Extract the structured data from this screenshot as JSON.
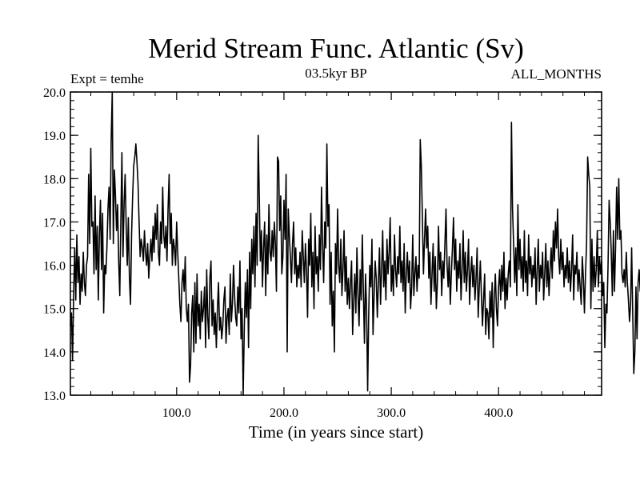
{
  "chart_data": {
    "type": "line",
    "title": "Merid Stream Func. Atlantic (Sv)",
    "subtitle": "03.5kyr BP",
    "left_label": "Expt = temhe",
    "right_label": "ALL_MONTHS",
    "xlabel": "Time (in years since start)",
    "ylabel": "",
    "xlim": [
      1,
      496
    ],
    "ylim": [
      13.0,
      20.0
    ],
    "xticks": [
      100,
      200,
      300,
      400
    ],
    "xtick_labels": [
      "100.0",
      "200.0",
      "300.0",
      "400.0"
    ],
    "yticks": [
      13,
      14,
      15,
      16,
      17,
      18,
      19,
      20
    ],
    "ytick_labels": [
      "13.0",
      "14.0",
      "15.0",
      "16.0",
      "17.0",
      "18.0",
      "19.0",
      "20.0"
    ],
    "grid": false,
    "series": [
      {
        "name": "Merid Stream Func. Atlantic",
        "color": "#000000",
        "x_start": 1,
        "x_step": 1,
        "values": [
          14.6,
          14.9,
          13.8,
          15.3,
          16.4,
          15.2,
          16.7,
          15.6,
          16.2,
          15.1,
          15.8,
          15.4,
          16.3,
          15.6,
          15.3,
          16.0,
          16.2,
          18.1,
          16.5,
          18.7,
          16.9,
          17.0,
          15.8,
          17.6,
          15.9,
          16.9,
          15.2,
          16.7,
          17.5,
          15.9,
          17.2,
          14.9,
          16.0,
          15.8,
          16.4,
          17.3,
          17.8,
          16.6,
          18.9,
          20.0,
          16.5,
          18.2,
          17.6,
          16.8,
          17.4,
          16.1,
          15.3,
          17.0,
          18.6,
          16.2,
          17.4,
          18.1,
          16.9,
          16.0,
          17.1,
          15.7,
          15.1,
          16.7,
          17.6,
          18.3,
          18.5,
          18.8,
          18.4,
          17.9,
          17.0,
          16.2,
          16.6,
          16.4,
          16.1,
          16.8,
          16.3,
          16.0,
          16.5,
          15.7,
          16.2,
          16.6,
          16.1,
          16.9,
          16.3,
          17.2,
          16.6,
          17.4,
          16.3,
          16.0,
          17.0,
          16.5,
          17.8,
          16.7,
          16.4,
          16.9,
          16.1,
          17.3,
          18.1,
          16.5,
          17.2,
          16.0,
          16.6,
          16.4,
          16.0,
          17.0,
          16.3,
          15.7,
          15.1,
          14.7,
          15.6,
          15.9,
          15.4,
          16.2,
          15.0,
          14.7,
          15.1,
          13.3,
          13.7,
          14.9,
          15.3,
          14.0,
          15.6,
          14.2,
          15.8,
          14.6,
          15.1,
          14.3,
          15.4,
          14.7,
          15.0,
          15.5,
          14.1,
          15.9,
          14.8,
          14.3,
          15.7,
          16.1,
          14.6,
          15.2,
          14.4,
          14.9,
          14.1,
          15.0,
          15.6,
          14.5,
          14.8,
          14.3,
          14.6,
          15.2,
          15.5,
          14.2,
          14.8,
          15.0,
          14.4,
          15.8,
          14.7,
          15.1,
          16.0,
          15.3,
          14.8,
          14.6,
          15.5,
          14.9,
          16.1,
          14.3,
          15.0,
          13.0,
          14.5,
          15.6,
          14.8,
          15.9,
          14.1,
          16.3,
          15.0,
          16.6,
          15.8,
          16.9,
          15.5,
          17.2,
          16.0,
          19.0,
          17.6,
          16.1,
          16.8,
          15.5,
          16.4,
          17.0,
          15.3,
          16.7,
          15.8,
          17.4,
          16.3,
          16.1,
          16.8,
          16.2,
          17.0,
          16.5,
          15.4,
          18.5,
          18.4,
          16.8,
          17.6,
          15.8,
          16.2,
          17.5,
          16.6,
          18.1,
          14.0,
          17.3,
          16.7,
          16.2,
          15.6,
          16.5,
          17.0,
          15.8,
          16.4,
          15.5,
          16.0,
          15.7,
          16.3,
          15.5,
          16.8,
          16.2,
          15.6,
          16.5,
          15.9,
          14.8,
          16.6,
          16.0,
          17.2,
          15.5,
          16.3,
          15.0,
          16.9,
          15.8,
          16.2,
          15.4,
          16.7,
          15.9,
          17.8,
          16.5,
          15.6,
          17.0,
          16.4,
          18.8,
          16.9,
          17.4,
          15.1,
          16.3,
          14.6,
          15.4,
          14.0,
          16.5,
          15.8,
          17.3,
          16.0,
          15.6,
          16.6,
          15.3,
          15.9,
          16.8,
          15.4,
          16.2,
          15.1,
          15.7,
          15.0,
          15.6,
          16.1,
          14.4,
          15.2,
          15.8,
          14.9,
          16.4,
          15.3,
          14.6,
          15.9,
          15.2,
          16.7,
          15.4,
          14.2,
          15.8,
          15.0,
          13.1,
          14.9,
          16.0,
          15.5,
          16.6,
          14.4,
          15.3,
          16.1,
          15.7,
          14.8,
          15.6,
          16.4,
          15.1,
          15.9,
          16.8,
          15.5,
          16.1,
          15.2,
          16.6,
          15.8,
          16.3,
          17.1,
          15.4,
          16.0,
          15.3,
          16.7,
          15.9,
          15.5,
          16.2,
          15.8,
          16.9,
          15.6,
          16.1,
          15.4,
          16.5,
          14.9,
          15.8,
          16.3,
          15.6,
          16.1,
          15.0,
          15.5,
          16.7,
          15.3,
          15.8,
          16.2,
          15.4,
          16.0,
          15.7,
          18.9,
          18.3,
          17.1,
          15.8,
          16.6,
          17.3,
          16.4,
          16.9,
          15.7,
          16.3,
          15.1,
          15.8,
          16.5,
          15.4,
          16.2,
          15.0,
          15.6,
          16.9,
          15.9,
          16.3,
          15.3,
          16.1,
          15.7,
          16.5,
          17.3,
          16.0,
          15.5,
          16.2,
          15.1,
          15.8,
          16.4,
          17.1,
          15.9,
          16.6,
          15.4,
          16.1,
          15.7,
          16.5,
          15.2,
          15.9,
          16.8,
          15.6,
          16.3,
          15.4,
          15.9,
          16.6,
          15.1,
          15.8,
          16.2,
          15.5,
          16.0,
          15.2,
          15.7,
          16.4,
          14.8,
          15.5,
          16.1,
          15.3,
          14.6,
          15.2,
          15.8,
          14.4,
          15.0,
          14.9,
          14.3,
          15.4,
          14.8,
          15.6,
          14.1,
          15.3,
          15.8,
          15.0,
          14.6,
          15.5,
          15.9,
          15.2,
          16.0,
          15.4,
          16.3,
          15.0,
          15.7,
          15.2,
          15.8,
          16.1,
          15.5,
          19.3,
          17.3,
          16.5,
          15.6,
          16.4,
          15.3,
          17.4,
          15.9,
          16.6,
          15.7,
          16.2,
          15.4,
          16.8,
          15.6,
          16.1,
          15.3,
          16.7,
          15.8,
          16.2,
          15.5,
          16.0,
          15.7,
          16.4,
          15.1,
          15.9,
          16.6,
          15.4,
          16.0,
          15.7,
          16.3,
          15.2,
          15.8,
          16.5,
          15.5,
          16.1,
          15.3,
          15.9,
          16.4,
          15.7,
          16.8,
          16.1,
          17.0,
          16.4,
          17.3,
          16.2,
          15.8,
          16.6,
          15.9,
          16.3,
          15.5,
          16.0,
          15.7,
          16.4,
          15.6,
          16.1,
          15.4,
          15.9,
          16.7,
          15.2,
          16.0,
          15.8,
          16.3,
          15.4,
          15.9,
          15.5,
          15.1,
          16.2,
          15.7,
          14.9,
          15.8,
          16.5,
          18.5,
          18.1,
          17.8,
          15.0,
          16.6,
          15.4,
          16.2,
          15.5,
          15.9,
          16.8,
          15.5,
          16.2,
          15.8,
          16.1,
          15.3,
          15.6,
          14.1,
          15.1,
          14.9,
          16.0,
          17.5,
          17.0,
          16.3,
          15.3,
          16.8,
          15.4,
          16.4,
          17.8,
          16.6,
          18.0,
          16.6,
          16.8,
          15.8,
          15.6,
          15.9,
          15.5,
          16.3,
          15.6,
          15.2,
          14.7,
          15.1,
          16.4,
          14.9,
          13.5,
          14.0,
          15.5,
          14.3,
          15.6,
          15.9,
          15.4,
          15.7
        ]
      }
    ]
  }
}
